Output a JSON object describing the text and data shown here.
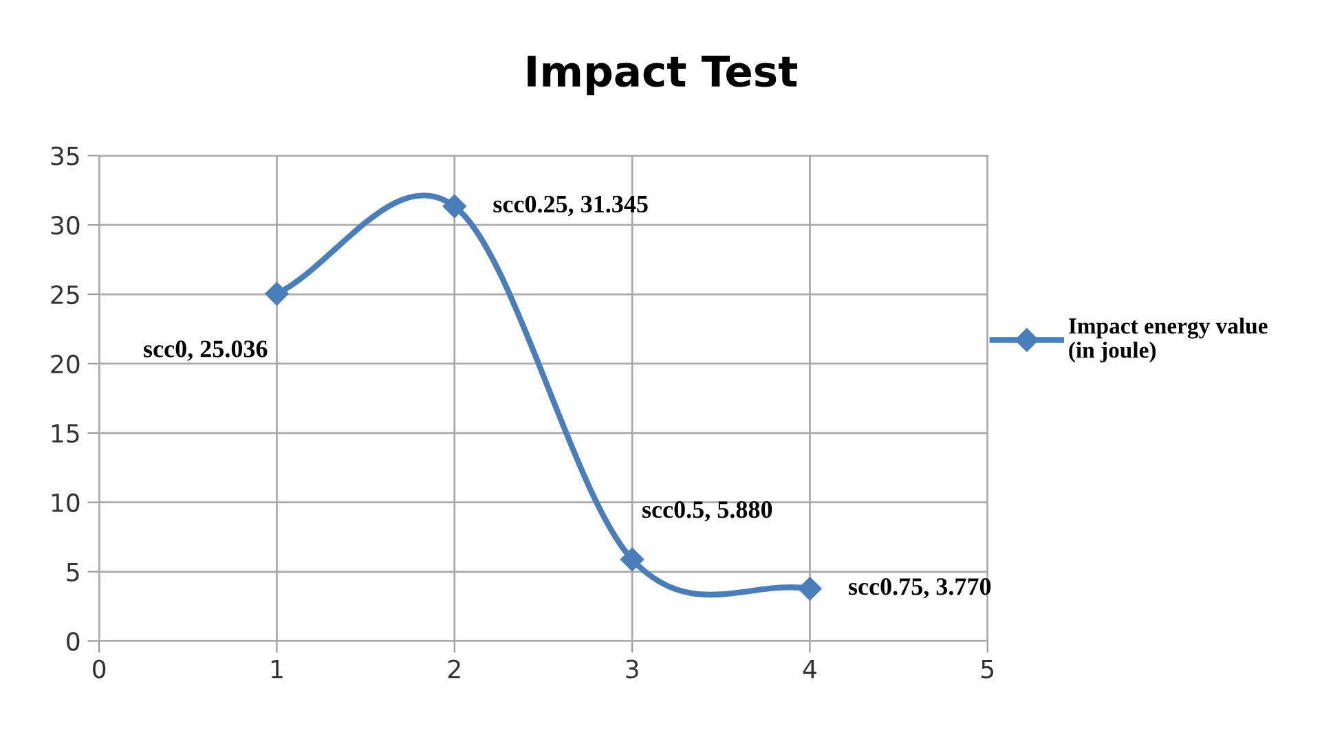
{
  "chart_data": {
    "type": "line",
    "title": "Impact Test",
    "x": [
      1,
      2,
      3,
      4
    ],
    "series": [
      {
        "name": "Impact energy value\n(in joule)",
        "color": "#4a7ebb",
        "values": [
          25.036,
          31.345,
          5.88,
          3.77
        ],
        "value_labels": [
          "scc0, 25.036",
          "scc0.25, 31.345",
          "scc0.5, 5.880",
          "scc0.75, 3.770"
        ]
      }
    ],
    "xlim": [
      0,
      5
    ],
    "xticks": [
      0,
      1,
      2,
      3,
      4,
      5
    ],
    "ylim": [
      0,
      35
    ],
    "yticks": [
      0,
      5,
      10,
      15,
      20,
      25,
      30,
      35
    ],
    "grid": true,
    "legend": "right",
    "marker": "diamond",
    "line_style": "solid"
  }
}
